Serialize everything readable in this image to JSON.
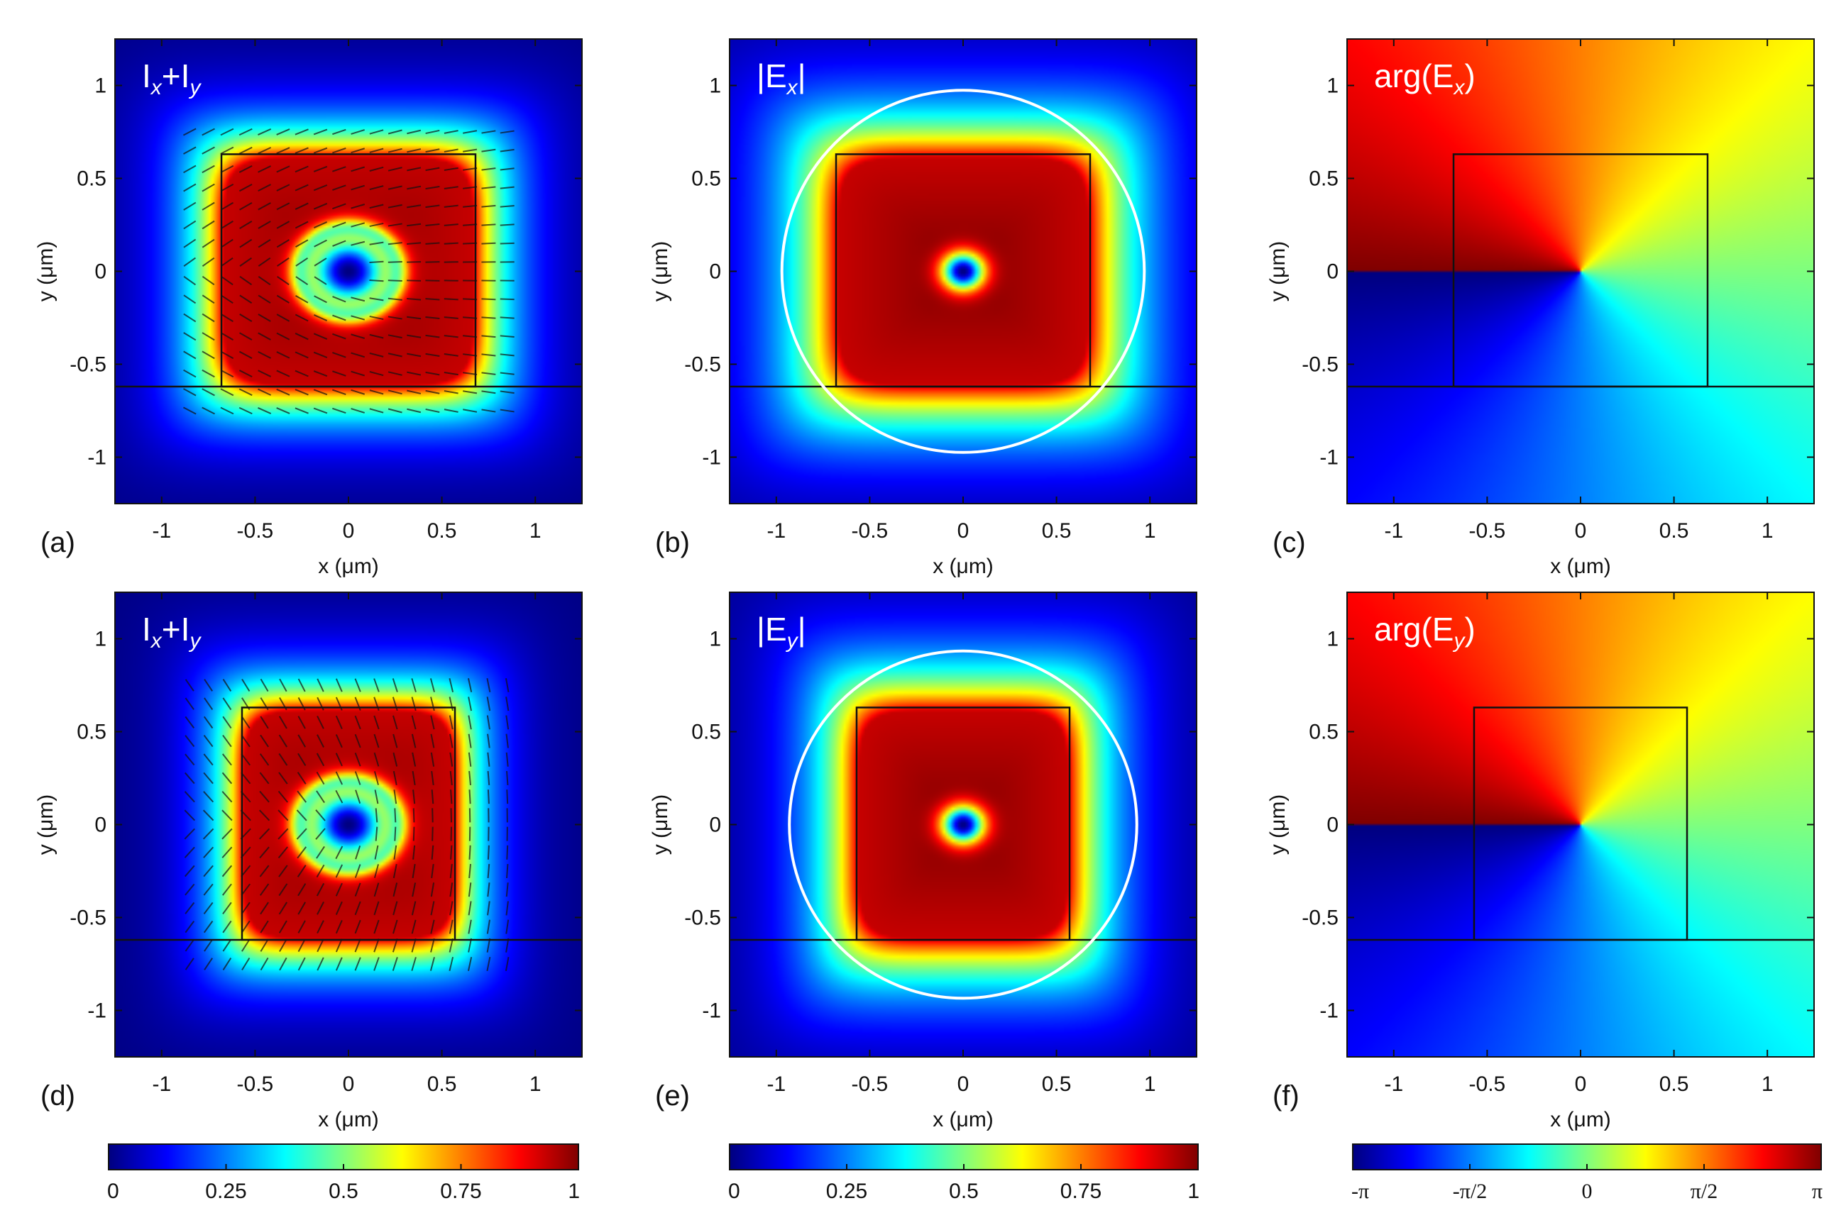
{
  "figure": {
    "colormaps": {
      "jet_stops": [
        "#00007f",
        "#0000ff",
        "#007fff",
        "#00ffff",
        "#7fff7f",
        "#ffff00",
        "#ff7f00",
        "#ff0000",
        "#7f0000"
      ]
    },
    "colorbars": [
      {
        "name": "intensity",
        "ticks": [
          "0",
          "0.25",
          "0.5",
          "0.75",
          "1"
        ]
      },
      {
        "name": "amplitude",
        "ticks": [
          "0",
          "0.25",
          "0.5",
          "0.75",
          "1"
        ]
      },
      {
        "name": "phase",
        "ticks": [
          "-π",
          "-π/2",
          "0",
          "π/2",
          "π"
        ]
      }
    ]
  },
  "chart_data": [
    {
      "panel": "(a)",
      "type": "heatmap",
      "field": "intensity",
      "overlay_text": "Ix+Iy",
      "inlabel_main": "I",
      "inlabel_sub1": "x",
      "inlabel_mid": "+I",
      "inlabel_sub2": "y",
      "xlabel": "x (μm)",
      "ylabel": "y (μm)",
      "xlim": [
        -1.25,
        1.25
      ],
      "ylim": [
        -1.25,
        1.25
      ],
      "xticks": [
        "-1",
        "-0.5",
        "0",
        "0.5",
        "1"
      ],
      "yticks": [
        "1",
        "0.5",
        "0",
        "-0.5",
        "-1"
      ],
      "waveguide_halfwidth": 0.68,
      "waveguide_top": 0.63,
      "substrate_y": -0.62,
      "arrows": true,
      "circle_radius": null
    },
    {
      "panel": "(b)",
      "type": "heatmap",
      "field": "amplitude",
      "inlabel_main": "|E",
      "inlabel_sub1": "x",
      "inlabel_mid": "|",
      "inlabel_sub2": "",
      "xlabel": "x (μm)",
      "ylabel": "y (μm)",
      "xlim": [
        -1.25,
        1.25
      ],
      "ylim": [
        -1.25,
        1.25
      ],
      "xticks": [
        "-1",
        "-0.5",
        "0",
        "0.5",
        "1"
      ],
      "yticks": [
        "1",
        "0.5",
        "0",
        "-0.5",
        "-1"
      ],
      "waveguide_halfwidth": 0.68,
      "waveguide_top": 0.63,
      "substrate_y": -0.62,
      "arrows": false,
      "circle_radius": 0.97
    },
    {
      "panel": "(c)",
      "type": "heatmap",
      "field": "phase",
      "inlabel_main": "arg(E",
      "inlabel_sub1": "x",
      "inlabel_mid": ")",
      "inlabel_sub2": "",
      "xlabel": "x (μm)",
      "ylabel": "y (μm)",
      "xlim": [
        -1.25,
        1.25
      ],
      "ylim": [
        -1.25,
        1.25
      ],
      "xticks": [
        "-1",
        "-0.5",
        "0",
        "0.5",
        "1"
      ],
      "yticks": [
        "1",
        "0.5",
        "0",
        "-0.5",
        "-1"
      ],
      "waveguide_halfwidth": 0.68,
      "waveguide_top": 0.63,
      "substrate_y": -0.62,
      "arrows": false,
      "circle_radius": null
    },
    {
      "panel": "(d)",
      "type": "heatmap",
      "field": "intensity",
      "inlabel_main": "I",
      "inlabel_sub1": "x",
      "inlabel_mid": "+I",
      "inlabel_sub2": "y",
      "xlabel": "x (μm)",
      "ylabel": "y (μm)",
      "xlim": [
        -1.25,
        1.25
      ],
      "ylim": [
        -1.25,
        1.25
      ],
      "xticks": [
        "-1",
        "-0.5",
        "0",
        "0.5",
        "1"
      ],
      "yticks": [
        "1",
        "0.5",
        "0",
        "-0.5",
        "-1"
      ],
      "waveguide_halfwidth": 0.57,
      "waveguide_top": 0.63,
      "substrate_y": -0.62,
      "arrows": true,
      "circle_radius": null
    },
    {
      "panel": "(e)",
      "type": "heatmap",
      "field": "amplitude",
      "inlabel_main": "|E",
      "inlabel_sub1": "y",
      "inlabel_mid": "|",
      "inlabel_sub2": "",
      "xlabel": "x (μm)",
      "ylabel": "y (μm)",
      "xlim": [
        -1.25,
        1.25
      ],
      "ylim": [
        -1.25,
        1.25
      ],
      "xticks": [
        "-1",
        "-0.5",
        "0",
        "0.5",
        "1"
      ],
      "yticks": [
        "1",
        "0.5",
        "0",
        "-0.5",
        "-1"
      ],
      "waveguide_halfwidth": 0.57,
      "waveguide_top": 0.63,
      "substrate_y": -0.62,
      "arrows": false,
      "circle_radius": 0.93
    },
    {
      "panel": "(f)",
      "type": "heatmap",
      "field": "phase",
      "inlabel_main": "arg(E",
      "inlabel_sub1": "y",
      "inlabel_mid": ")",
      "inlabel_sub2": "",
      "xlabel": "x (μm)",
      "ylabel": "y (μm)",
      "xlim": [
        -1.25,
        1.25
      ],
      "ylim": [
        -1.25,
        1.25
      ],
      "xticks": [
        "-1",
        "-0.5",
        "0",
        "0.5",
        "1"
      ],
      "yticks": [
        "1",
        "0.5",
        "0",
        "-0.5",
        "-1"
      ],
      "waveguide_halfwidth": 0.57,
      "waveguide_top": 0.63,
      "substrate_y": -0.62,
      "arrows": false,
      "circle_radius": null
    }
  ]
}
